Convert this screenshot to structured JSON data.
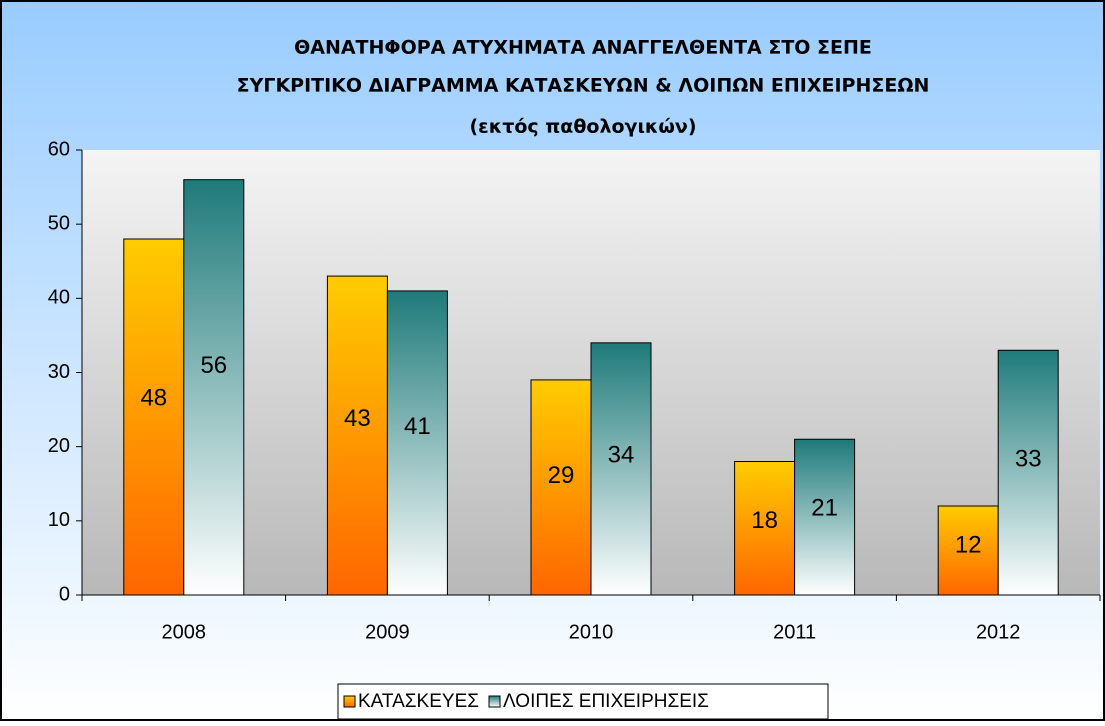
{
  "chart_data": {
    "type": "bar",
    "title": [
      "ΘΑΝΑΤΗΦΟΡΑ ΑΤΥΧΗΜΑΤΑ ΑΝΑΓΓΕΛΘΕΝΤΑ ΣΤΟ ΣΕΠΕ",
      "ΣΥΓΚΡΙΤΙΚΟ ΔΙΑΓΡΑΜΜΑ ΚΑΤΑΣΚΕΥΩΝ & ΛΟΙΠΩΝ ΕΠΙΧΕΙΡΗΣΕΩΝ",
      "(εκτός παθολογικών)"
    ],
    "categories": [
      "2008",
      "2009",
      "2010",
      "2011",
      "2012"
    ],
    "series": [
      {
        "name": "ΚΑΤΑΣΚΕΥΕΣ",
        "color": [
          "#ffcc00",
          "#ff6600"
        ],
        "values": [
          48,
          43,
          29,
          18,
          12
        ]
      },
      {
        "name": "ΛΟΙΠΕΣ ΕΠΙΧΕΙΡΗΣΕΙΣ",
        "color": [
          "#1f7a7a",
          "#ffffff"
        ],
        "values": [
          56,
          41,
          34,
          21,
          33
        ]
      }
    ],
    "ylim": [
      0,
      60
    ],
    "yticks": [
      0,
      10,
      20,
      30,
      40,
      50,
      60
    ],
    "legend": "bottom"
  }
}
